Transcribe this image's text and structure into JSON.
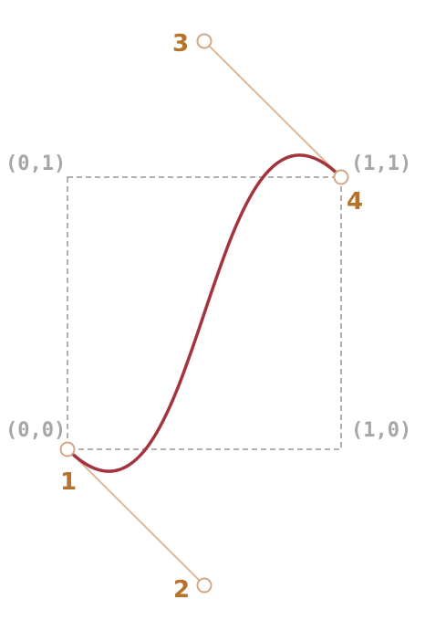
{
  "corner_labels": {
    "top_left": "(0,1)",
    "top_right": "(1,1)",
    "bottom_left": "(0,0)",
    "bottom_right": "(1,0)"
  },
  "control_points": [
    {
      "number": "1",
      "x": 0,
      "y": 0
    },
    {
      "number": "2",
      "x": 0.5,
      "y": -0.5
    },
    {
      "number": "3",
      "x": 0.5,
      "y": 1.5
    },
    {
      "number": "4",
      "x": 1,
      "y": 1
    }
  ],
  "colors": {
    "curve": "#a3333d",
    "handle_line": "#deb896",
    "control_point": "#d3a785",
    "number_label": "#b5732b",
    "corner_label": "#a6a6a6",
    "unit_square": "#999999"
  }
}
